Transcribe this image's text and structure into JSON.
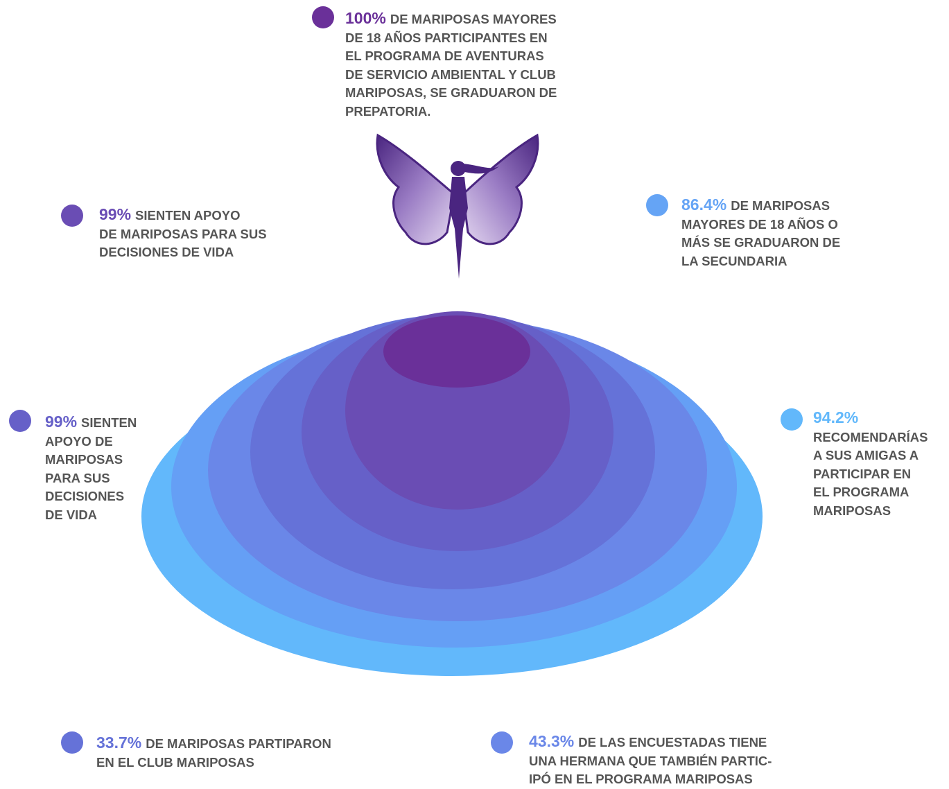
{
  "items": [
    {
      "value": "100%",
      "lines": [
        "DE MARIPOSAS MAYORES",
        "DE 18 AÑOS PARTICIPANTES EN",
        "EL PROGRAMA DE AVENTURAS",
        "DE SERVICIO AMBIENTAL Y CLUB",
        "MARIPOSAS, SE GRADUARON DE",
        "PREPATORIA."
      ]
    },
    {
      "value": "99%",
      "lines": [
        "SIENTEN APOYO",
        "DE MARIPOSAS PARA SUS",
        "DECISIONES DE VIDA"
      ]
    },
    {
      "value": "86.4%",
      "lines": [
        "DE MARIPOSAS",
        "MAYORES DE 18 AÑOS O",
        "MÁS SE GRADUARON DE",
        "LA SECUNDARIA"
      ]
    },
    {
      "value": "99%",
      "lines": [
        "SIENTEN",
        "APOYO DE",
        "MARIPOSAS",
        "PARA SUS",
        "DECISIONES",
        "DE VIDA"
      ]
    },
    {
      "value": "94.2%",
      "lines": [
        "",
        "RECOMENDARÍAS",
        "A SUS AMIGAS A",
        "PARTICIPAR EN",
        "EL PROGRAMA",
        "MARIPOSAS"
      ]
    },
    {
      "value": "33.7%",
      "lines": [
        "DE MARIPOSAS PARTIPARON",
        "EN EL CLUB MARIPOSAS"
      ]
    },
    {
      "value": "43.3%",
      "lines": [
        "DE LAS ENCUESTADAS TIENE",
        "UNA HERMANA QUE TAMBIÉN PARTIC-",
        "IPÓ EN EL PROGRAMA MARIPOSAS"
      ]
    }
  ]
}
